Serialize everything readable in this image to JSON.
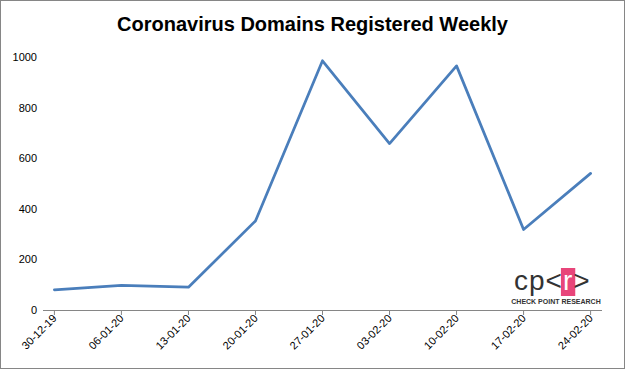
{
  "chart_data": {
    "type": "line",
    "title": "Coronavirus Domains Registered Weekly",
    "categories": [
      "30-12-19",
      "06-01-20",
      "13-01-20",
      "20-01-20",
      "27-01-20",
      "03-02-20",
      "10-02-20",
      "17-02-20",
      "24-02-20"
    ],
    "values": [
      80,
      97,
      90,
      352,
      985,
      658,
      965,
      318,
      540
    ],
    "color": "#4a7ebb",
    "ylim": [
      0,
      1000
    ],
    "yticks": [
      0,
      200,
      400,
      600,
      800,
      1000
    ],
    "grid": false,
    "annotations": [
      "cp<r>",
      "CHECK POINT RESEARCH"
    ]
  }
}
